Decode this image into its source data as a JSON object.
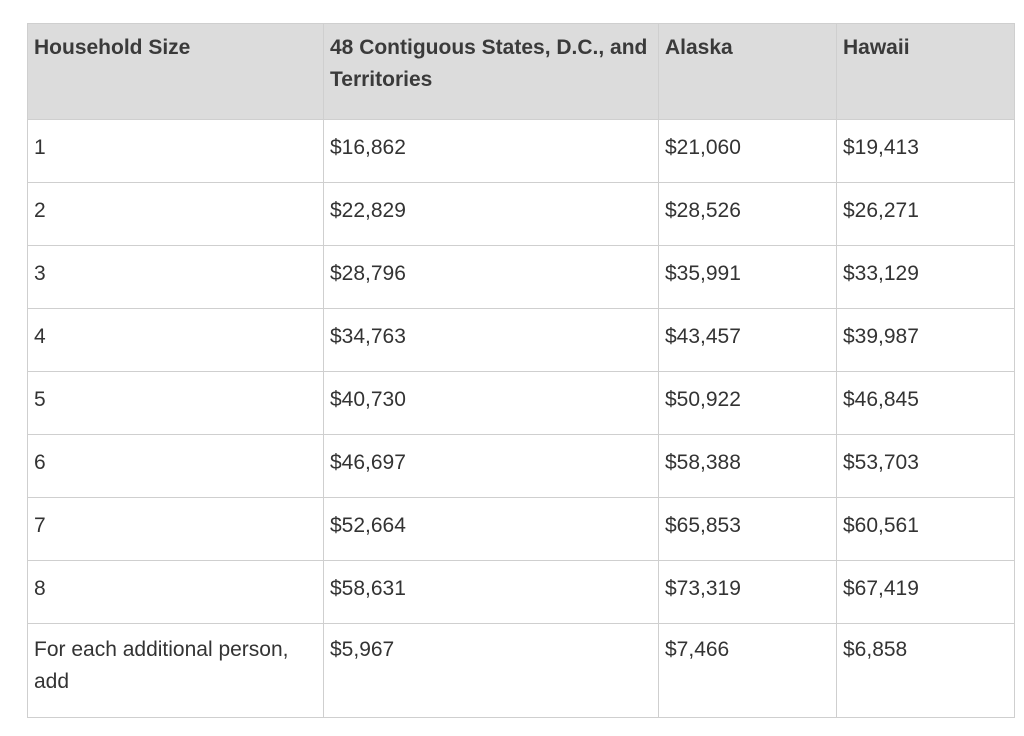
{
  "table": {
    "headers": [
      "Household Size",
      "48 Contiguous States, D.C., and Territories",
      "Alaska",
      "Hawaii"
    ],
    "rows": [
      [
        "1",
        "$16,862",
        "$21,060",
        "$19,413"
      ],
      [
        "2",
        "$22,829",
        "$28,526",
        "$26,271"
      ],
      [
        "3",
        "$28,796",
        "$35,991",
        "$33,129"
      ],
      [
        "4",
        "$34,763",
        "$43,457",
        "$39,987"
      ],
      [
        "5",
        "$40,730",
        "$50,922",
        "$46,845"
      ],
      [
        "6",
        "$46,697",
        "$58,388",
        "$53,703"
      ],
      [
        "7",
        "$52,664",
        "$65,853",
        "$60,561"
      ],
      [
        "8",
        "$58,631",
        "$73,319",
        "$67,419"
      ],
      [
        "For each additional person, add",
        "$5,967",
        "$7,466",
        "$6,858"
      ]
    ]
  }
}
